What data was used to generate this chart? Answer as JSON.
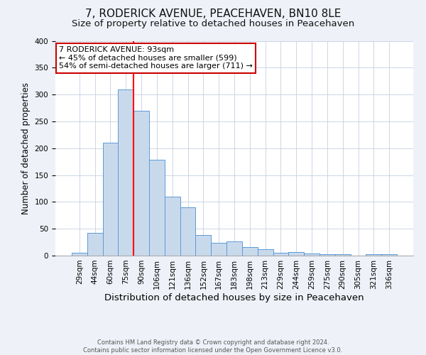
{
  "title": "7, RODERICK AVENUE, PEACEHAVEN, BN10 8LE",
  "subtitle": "Size of property relative to detached houses in Peacehaven",
  "xlabel": "Distribution of detached houses by size in Peacehaven",
  "ylabel": "Number of detached properties",
  "categories": [
    "29sqm",
    "44sqm",
    "60sqm",
    "75sqm",
    "90sqm",
    "106sqm",
    "121sqm",
    "136sqm",
    "152sqm",
    "167sqm",
    "183sqm",
    "198sqm",
    "213sqm",
    "229sqm",
    "244sqm",
    "259sqm",
    "275sqm",
    "290sqm",
    "305sqm",
    "321sqm",
    "336sqm"
  ],
  "values": [
    5,
    42,
    210,
    310,
    270,
    178,
    110,
    90,
    38,
    24,
    27,
    16,
    12,
    5,
    7,
    4,
    2,
    2,
    0,
    3,
    3
  ],
  "bar_color": "#c9d9ec",
  "bar_edge_color": "#5b9bd5",
  "red_line_index": 3.5,
  "annotation_title": "7 RODERICK AVENUE: 93sqm",
  "annotation_line1": "← 45% of detached houses are smaller (599)",
  "annotation_line2": "54% of semi-detached houses are larger (711) →",
  "annotation_box_color": "#ffffff",
  "annotation_box_edge_color": "#cc0000",
  "ylim": [
    0,
    400
  ],
  "yticks": [
    0,
    50,
    100,
    150,
    200,
    250,
    300,
    350,
    400
  ],
  "footer_line1": "Contains HM Land Registry data © Crown copyright and database right 2024.",
  "footer_line2": "Contains public sector information licensed under the Open Government Licence v3.0.",
  "title_fontsize": 11,
  "subtitle_fontsize": 9.5,
  "xlabel_fontsize": 9.5,
  "ylabel_fontsize": 8.5,
  "tick_fontsize": 7.5,
  "annotation_fontsize": 8,
  "footer_fontsize": 6,
  "background_color": "#eef2f8",
  "plot_bg_color": "#ffffff",
  "grid_color": "#c5d0e0"
}
